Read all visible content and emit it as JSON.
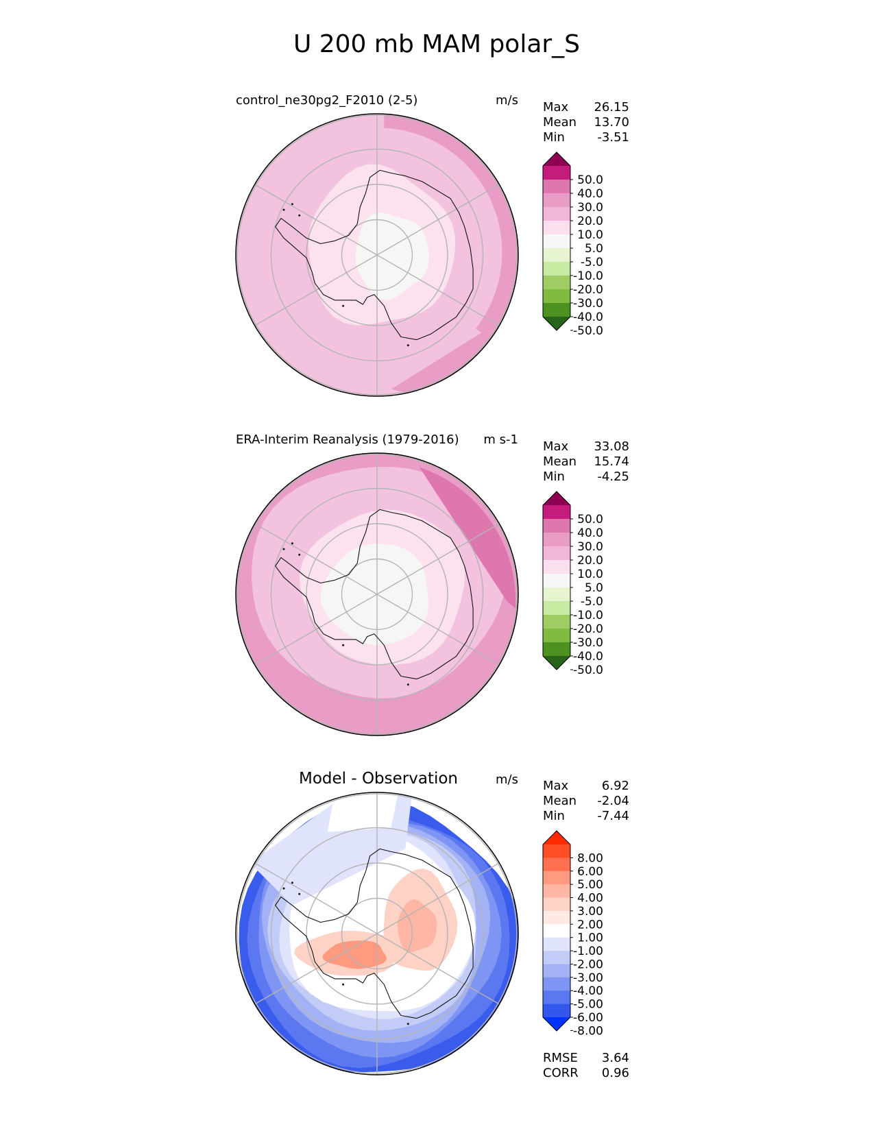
{
  "figure": {
    "title": "U 200 mb MAM polar_S"
  },
  "chart_data": [
    {
      "type": "heatmap",
      "projection": "south polar stereographic",
      "title": "control_ne30pg2_F2010 (2-5)",
      "units": "m/s",
      "stats": [
        {
          "label": "Max",
          "value": "26.15"
        },
        {
          "label": "Mean",
          "value": "13.70"
        },
        {
          "label": "Min",
          "value": "-3.51"
        }
      ],
      "colorbar": {
        "extend": "both",
        "labels": [
          "50.0",
          "40.0",
          "30.0",
          "20.0",
          "10.0",
          "5.0",
          "-5.0",
          "-10.0",
          "-20.0",
          "-30.0",
          "-40.0",
          "-50.0"
        ],
        "colors": [
          "#8e0152",
          "#c51b7d",
          "#de77ae",
          "#e99cc6",
          "#f1b6da",
          "#fde0ef",
          "#f7f7f7",
          "#e6f5d0",
          "#c7e9a2",
          "#9fcd63",
          "#7fbc41",
          "#4d9221",
          "#276419"
        ]
      },
      "field": {
        "background": "#f2c2de",
        "rings": [
          {
            "r": 0.55,
            "color": "#fbe2ee"
          },
          {
            "r": 0.2,
            "color": "#f6f6f4"
          }
        ],
        "jet_regions": [
          "outer ring from east to south",
          "southwest sector"
        ],
        "jet_color": "#e99cc6"
      }
    },
    {
      "type": "heatmap",
      "projection": "south polar stereographic",
      "title": "ERA-Interim Reanalysis (1979-2016)",
      "units": "m s-1",
      "stats": [
        {
          "label": "Max",
          "value": "33.08"
        },
        {
          "label": "Mean",
          "value": "15.74"
        },
        {
          "label": "Min",
          "value": "-4.25"
        }
      ],
      "colorbar": {
        "extend": "both",
        "labels": [
          "50.0",
          "40.0",
          "30.0",
          "20.0",
          "10.0",
          "5.0",
          "-5.0",
          "-10.0",
          "-20.0",
          "-30.0",
          "-40.0",
          "-50.0"
        ],
        "colors": [
          "#8e0152",
          "#c51b7d",
          "#de77ae",
          "#e99cc6",
          "#f1b6da",
          "#fde0ef",
          "#f7f7f7",
          "#e6f5d0",
          "#c7e9a2",
          "#9fcd63",
          "#7fbc41",
          "#4d9221",
          "#276419"
        ]
      },
      "field": {
        "background": "#f2c2de",
        "rings": [
          {
            "r": 0.55,
            "color": "#fbe2ee"
          },
          {
            "r": 0.27,
            "color": "#f6f6f4"
          }
        ],
        "jet_regions": [
          "outer ring all around"
        ],
        "jet_color": "#e99cc6",
        "max_color": "#de77ae"
      }
    },
    {
      "type": "heatmap",
      "projection": "south polar stereographic",
      "title": "Model - Observation",
      "units": "m/s",
      "stats": [
        {
          "label": "Max",
          "value": "6.92"
        },
        {
          "label": "Mean",
          "value": "-2.04"
        },
        {
          "label": "Min",
          "value": "-7.44"
        }
      ],
      "colorbar": {
        "extend": "both",
        "labels": [
          "8.00",
          "6.00",
          "5.00",
          "4.00",
          "3.00",
          "2.00",
          "1.00",
          "-1.00",
          "-2.00",
          "-3.00",
          "-4.00",
          "-5.00",
          "-6.00",
          "-8.00"
        ],
        "colors": [
          "#ff2a00",
          "#ff4d28",
          "#ff7050",
          "#ff9a80",
          "#ffb6a5",
          "#ffd2c6",
          "#ffe9e3",
          "#ffffff",
          "#dfe3fb",
          "#c3ccf7",
          "#a3b2f5",
          "#7f95f4",
          "#5c78f0",
          "#3356ec",
          "#0033ff"
        ]
      },
      "field": {
        "background": "#ffffff",
        "negative_ring_colors": [
          "#3a5ced",
          "#5c78f0",
          "#7f95f4",
          "#a3b2f5",
          "#c3ccf7",
          "#dfe3fb"
        ],
        "positive_colors": [
          "#ffd2c6",
          "#ffb6a5",
          "#ff9a80"
        ]
      },
      "footer_stats": [
        {
          "label": "RMSE",
          "value": "3.64"
        },
        {
          "label": "CORR",
          "value": "0.96"
        }
      ]
    }
  ]
}
